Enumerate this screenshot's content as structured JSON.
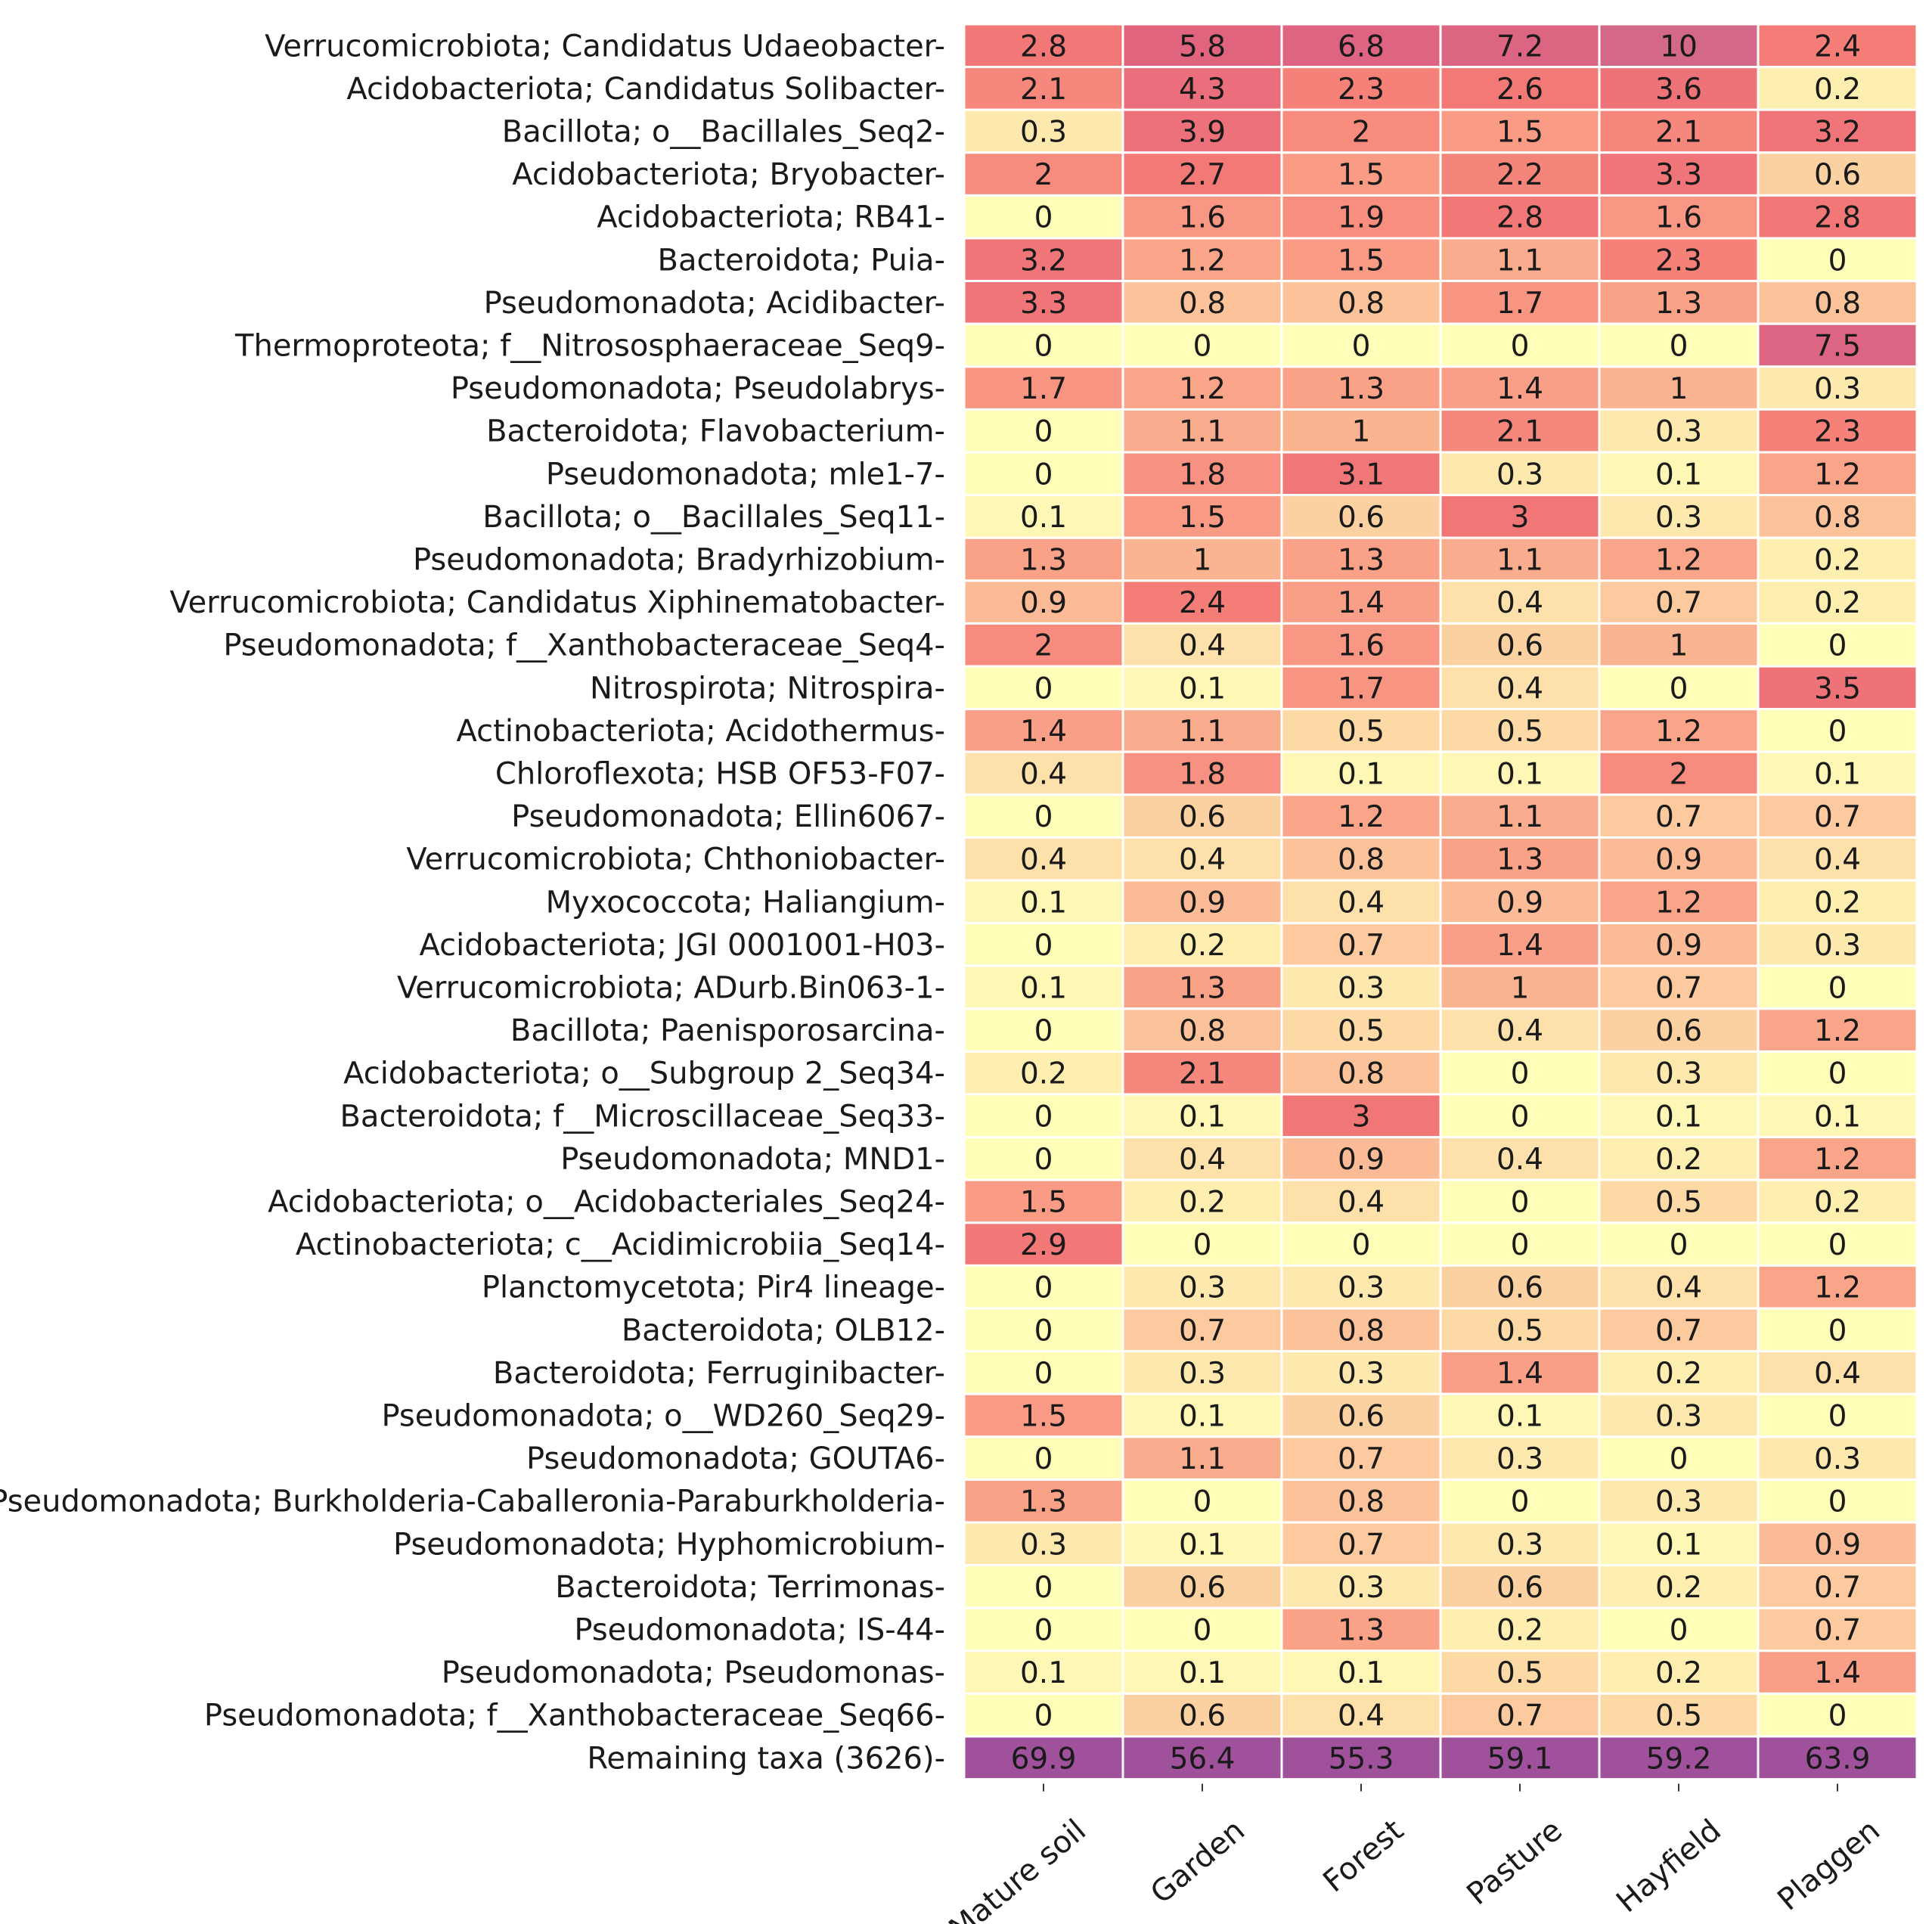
{
  "chart_data": {
    "type": "heatmap",
    "title": "",
    "xlabel": "",
    "ylabel": "",
    "columns": [
      "Mature soil",
      "Garden",
      "Forest",
      "Pasture",
      "Hayfield",
      "Plaggen"
    ],
    "rows": [
      {
        "label": "Verrucomicrobiota; Candidatus Udaeobacter",
        "values": [
          2.8,
          5.8,
          6.8,
          7.2,
          10,
          2.4
        ]
      },
      {
        "label": "Acidobacteriota; Candidatus Solibacter",
        "values": [
          2.1,
          4.3,
          2.3,
          2.6,
          3.6,
          0.2
        ]
      },
      {
        "label": "Bacillota; o__Bacillales_Seq2",
        "values": [
          0.3,
          3.9,
          2,
          1.5,
          2.1,
          3.2
        ]
      },
      {
        "label": "Acidobacteriota; Bryobacter",
        "values": [
          2,
          2.7,
          1.5,
          2.2,
          3.3,
          0.6
        ]
      },
      {
        "label": "Acidobacteriota; RB41",
        "values": [
          0,
          1.6,
          1.9,
          2.8,
          1.6,
          2.8
        ]
      },
      {
        "label": "Bacteroidota; Puia",
        "values": [
          3.2,
          1.2,
          1.5,
          1.1,
          2.3,
          0
        ]
      },
      {
        "label": "Pseudomonadota; Acidibacter",
        "values": [
          3.3,
          0.8,
          0.8,
          1.7,
          1.3,
          0.8
        ]
      },
      {
        "label": "Thermoproteota; f__Nitrososphaeraceae_Seq9",
        "values": [
          0,
          0,
          0,
          0,
          0,
          7.5
        ]
      },
      {
        "label": "Pseudomonadota; Pseudolabrys",
        "values": [
          1.7,
          1.2,
          1.3,
          1.4,
          1,
          0.3
        ]
      },
      {
        "label": "Bacteroidota; Flavobacterium",
        "values": [
          0,
          1.1,
          1,
          2.1,
          0.3,
          2.3
        ]
      },
      {
        "label": "Pseudomonadota; mle1-7",
        "values": [
          0,
          1.8,
          3.1,
          0.3,
          0.1,
          1.2
        ]
      },
      {
        "label": "Bacillota; o__Bacillales_Seq11",
        "values": [
          0.1,
          1.5,
          0.6,
          3,
          0.3,
          0.8
        ]
      },
      {
        "label": "Pseudomonadota; Bradyrhizobium",
        "values": [
          1.3,
          1,
          1.3,
          1.1,
          1.2,
          0.2
        ]
      },
      {
        "label": "Verrucomicrobiota; Candidatus Xiphinematobacter",
        "values": [
          0.9,
          2.4,
          1.4,
          0.4,
          0.7,
          0.2
        ]
      },
      {
        "label": "Pseudomonadota; f__Xanthobacteraceae_Seq4",
        "values": [
          2,
          0.4,
          1.6,
          0.6,
          1,
          0
        ]
      },
      {
        "label": "Nitrospirota; Nitrospira",
        "values": [
          0,
          0.1,
          1.7,
          0.4,
          0,
          3.5
        ]
      },
      {
        "label": "Actinobacteriota; Acidothermus",
        "values": [
          1.4,
          1.1,
          0.5,
          0.5,
          1.2,
          0
        ]
      },
      {
        "label": "Chloroflexota; HSB OF53-F07",
        "values": [
          0.4,
          1.8,
          0.1,
          0.1,
          2,
          0.1
        ]
      },
      {
        "label": "Pseudomonadota; Ellin6067",
        "values": [
          0,
          0.6,
          1.2,
          1.1,
          0.7,
          0.7
        ]
      },
      {
        "label": "Verrucomicrobiota; Chthoniobacter",
        "values": [
          0.4,
          0.4,
          0.8,
          1.3,
          0.9,
          0.4
        ]
      },
      {
        "label": "Myxococcota; Haliangium",
        "values": [
          0.1,
          0.9,
          0.4,
          0.9,
          1.2,
          0.2
        ]
      },
      {
        "label": "Acidobacteriota; JGI 0001001-H03",
        "values": [
          0,
          0.2,
          0.7,
          1.4,
          0.9,
          0.3
        ]
      },
      {
        "label": "Verrucomicrobiota; ADurb.Bin063-1",
        "values": [
          0.1,
          1.3,
          0.3,
          1,
          0.7,
          0
        ]
      },
      {
        "label": "Bacillota; Paenisporosarcina",
        "values": [
          0,
          0.8,
          0.5,
          0.4,
          0.6,
          1.2
        ]
      },
      {
        "label": "Acidobacteriota; o__Subgroup 2_Seq34",
        "values": [
          0.2,
          2.1,
          0.8,
          0,
          0.3,
          0
        ]
      },
      {
        "label": "Bacteroidota; f__Microscillaceae_Seq33",
        "values": [
          0,
          0.1,
          3,
          0,
          0.1,
          0.1
        ]
      },
      {
        "label": "Pseudomonadota; MND1",
        "values": [
          0,
          0.4,
          0.9,
          0.4,
          0.2,
          1.2
        ]
      },
      {
        "label": "Acidobacteriota; o__Acidobacteriales_Seq24",
        "values": [
          1.5,
          0.2,
          0.4,
          0,
          0.5,
          0.2
        ]
      },
      {
        "label": "Actinobacteriota; c__Acidimicrobiia_Seq14",
        "values": [
          2.9,
          0,
          0,
          0,
          0,
          0
        ]
      },
      {
        "label": "Planctomycetota; Pir4 lineage",
        "values": [
          0,
          0.3,
          0.3,
          0.6,
          0.4,
          1.2
        ]
      },
      {
        "label": "Bacteroidota; OLB12",
        "values": [
          0,
          0.7,
          0.8,
          0.5,
          0.7,
          0
        ]
      },
      {
        "label": "Bacteroidota; Ferruginibacter",
        "values": [
          0,
          0.3,
          0.3,
          1.4,
          0.2,
          0.4
        ]
      },
      {
        "label": "Pseudomonadota; o__WD260_Seq29",
        "values": [
          1.5,
          0.1,
          0.6,
          0.1,
          0.3,
          0
        ]
      },
      {
        "label": "Pseudomonadota; GOUTA6",
        "values": [
          0,
          1.1,
          0.7,
          0.3,
          0,
          0.3
        ]
      },
      {
        "label": "Pseudomonadota; Burkholderia-Caballeronia-Paraburkholderia",
        "values": [
          1.3,
          0,
          0.8,
          0,
          0.3,
          0
        ]
      },
      {
        "label": "Pseudomonadota; Hyphomicrobium",
        "values": [
          0.3,
          0.1,
          0.7,
          0.3,
          0.1,
          0.9
        ]
      },
      {
        "label": "Bacteroidota; Terrimonas",
        "values": [
          0,
          0.6,
          0.3,
          0.6,
          0.2,
          0.7
        ]
      },
      {
        "label": "Pseudomonadota; IS-44",
        "values": [
          0,
          0,
          1.3,
          0.2,
          0,
          0.7
        ]
      },
      {
        "label": "Pseudomonadota; Pseudomonas",
        "values": [
          0.1,
          0.1,
          0.1,
          0.5,
          0.2,
          1.4
        ]
      },
      {
        "label": "Pseudomonadota; f__Xanthobacteraceae_Seq66",
        "values": [
          0,
          0.6,
          0.4,
          0.7,
          0.5,
          0
        ]
      }
    ],
    "remaining": {
      "label": "Remaining taxa (3626)",
      "values": [
        69.9,
        56.4,
        55.3,
        59.1,
        59.2,
        63.9
      ]
    },
    "colormap": {
      "low": "#fefeb8",
      "mid_low": "#fde0aa",
      "mid": "#faa58a",
      "mid_high": "#f47a76",
      "high": "#e06380",
      "max": "#d46888",
      "remaining": "#a0519c",
      "cell_border": "#ffffff"
    }
  }
}
